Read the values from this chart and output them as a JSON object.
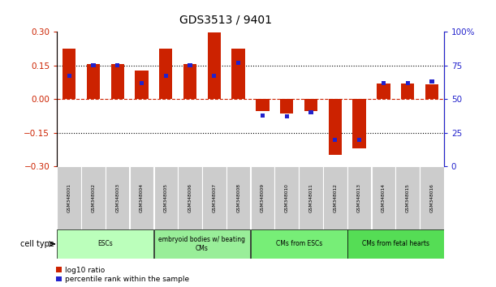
{
  "title": "GDS3513 / 9401",
  "samples": [
    "GSM348001",
    "GSM348002",
    "GSM348003",
    "GSM348004",
    "GSM348005",
    "GSM348006",
    "GSM348007",
    "GSM348008",
    "GSM348009",
    "GSM348010",
    "GSM348011",
    "GSM348012",
    "GSM348013",
    "GSM348014",
    "GSM348015",
    "GSM348016"
  ],
  "log10_ratio": [
    0.225,
    0.155,
    0.155,
    0.125,
    0.225,
    0.155,
    0.295,
    0.225,
    -0.055,
    -0.065,
    -0.055,
    -0.25,
    -0.22,
    0.07,
    0.07,
    0.065
  ],
  "percentile_rank": [
    67,
    75,
    75,
    62,
    67,
    75,
    67,
    77,
    38,
    37,
    40,
    20,
    20,
    62,
    62,
    63
  ],
  "ylim_left": [
    -0.3,
    0.3
  ],
  "ylim_right": [
    0,
    100
  ],
  "yticks_left": [
    -0.3,
    -0.15,
    0,
    0.15,
    0.3
  ],
  "yticks_right": [
    0,
    25,
    50,
    75,
    100
  ],
  "hlines_dotted": [
    -0.15,
    0.15
  ],
  "hline_dashed": 0.0,
  "bar_color_red": "#CC2200",
  "bar_color_blue": "#2222CC",
  "cell_groups": [
    {
      "label": "ESCs",
      "start": 0,
      "end": 3,
      "color": "#BBFFBB"
    },
    {
      "label": "embryoid bodies w/ beating\nCMs",
      "start": 4,
      "end": 7,
      "color": "#99EE99"
    },
    {
      "label": "CMs from ESCs",
      "start": 8,
      "end": 11,
      "color": "#77EE77"
    },
    {
      "label": "CMs from fetal hearts",
      "start": 12,
      "end": 15,
      "color": "#55DD55"
    }
  ],
  "cell_type_label": "cell type",
  "legend_red": "log10 ratio",
  "legend_blue": "percentile rank within the sample",
  "background_color": "#FFFFFF",
  "tick_label_color_left": "#CC2200",
  "tick_label_color_right": "#2222CC",
  "bar_width": 0.55,
  "sample_box_color": "#CCCCCC"
}
